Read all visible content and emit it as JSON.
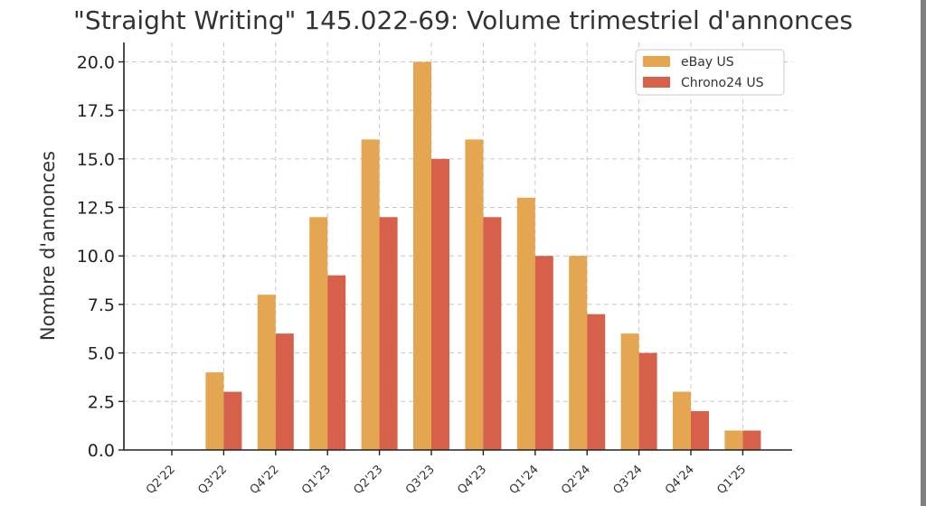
{
  "chart_data": {
    "type": "bar",
    "title": "\"Straight Writing\" 145.022-69: Volume trimestriel d'annonces",
    "xlabel": "",
    "ylabel": "Nombre d'annonces",
    "categories": [
      "Q2'22",
      "Q3'22",
      "Q4'22",
      "Q1'23",
      "Q2'23",
      "Q3'23",
      "Q4'23",
      "Q1'24",
      "Q2'24",
      "Q3'24",
      "Q4'24",
      "Q1'25"
    ],
    "series": [
      {
        "name": "eBay US",
        "color": "#E5A652",
        "values": [
          0,
          4,
          8,
          12,
          16,
          20,
          16,
          13,
          10,
          6,
          3,
          1
        ]
      },
      {
        "name": "Chrono24 US",
        "color": "#D6604A",
        "values": [
          0,
          3,
          6,
          9,
          12,
          15,
          12,
          10,
          7,
          5,
          2,
          1
        ]
      }
    ],
    "ylim": [
      0,
      21
    ],
    "yticks": [
      "0.0",
      "2.5",
      "5.0",
      "7.5",
      "10.0",
      "12.5",
      "15.0",
      "17.5",
      "20.0"
    ],
    "grid": true,
    "legend_position": "top-right"
  }
}
